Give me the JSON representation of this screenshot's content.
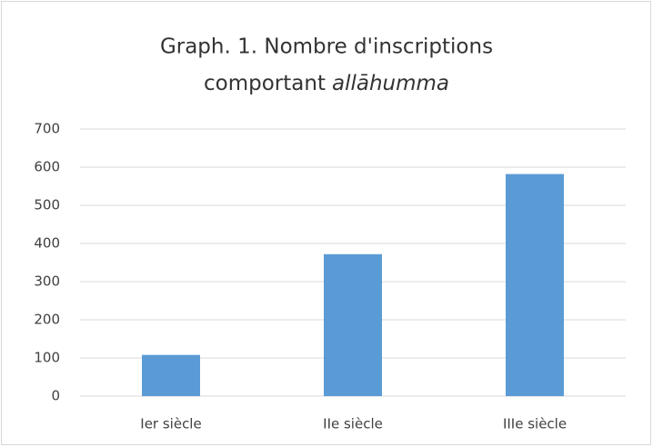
{
  "chart_data": {
    "type": "bar",
    "title": [
      "Graph. 1. Nombre d'inscriptions",
      "comportant",
      "allāhumma"
    ],
    "categories": [
      "Ier siècle",
      "IIe siècle",
      "IIIe siècle"
    ],
    "values": [
      108,
      372,
      582
    ],
    "color": "#5b9bd5",
    "ylim": [
      0,
      700
    ],
    "yticks": [
      0,
      100,
      200,
      300,
      400,
      500,
      600,
      700
    ],
    "grid": true
  }
}
